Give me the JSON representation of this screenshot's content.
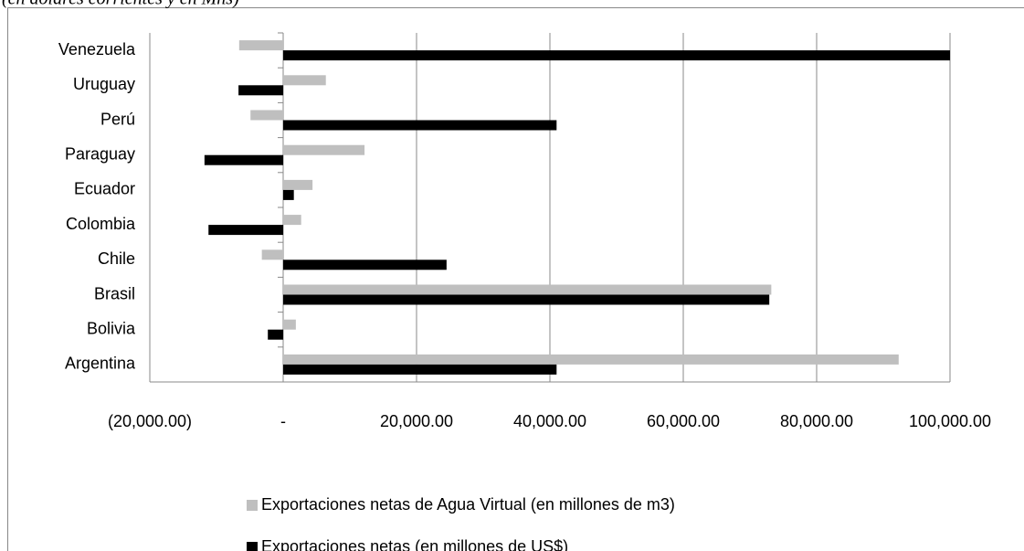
{
  "chart_data": {
    "type": "hbar",
    "subtitle": "(en dólares corrientes y en Mns)",
    "categories": [
      "Argentina",
      "Bolivia",
      "Brasil",
      "Chile",
      "Colombia",
      "Ecuador",
      "Paraguay",
      "Perú",
      "Uruguay",
      "Venezuela"
    ],
    "series": [
      {
        "name": "Exportaciones netas de Agua Virtual (en millones de m3)",
        "color": "#bfbfbf",
        "values": [
          92300,
          1900,
          73200,
          -3200,
          2700,
          4400,
          12200,
          -4900,
          6400,
          -6600
        ]
      },
      {
        "name": "Exportaciones netas (en millones de US$)",
        "color": "#000000",
        "values": [
          41000,
          -2300,
          72900,
          24500,
          -11200,
          1600,
          -11800,
          41000,
          -6700,
          100000
        ]
      }
    ],
    "xlim": [
      -20000,
      100000
    ],
    "xticks": [
      {
        "value": -20000,
        "label": "(20,000.00)"
      },
      {
        "value": 0,
        "label": "-"
      },
      {
        "value": 20000,
        "label": "20,000.00"
      },
      {
        "value": 40000,
        "label": "40,000.00"
      },
      {
        "value": 60000,
        "label": "60,000.00"
      },
      {
        "value": 80000,
        "label": "80,000.00"
      },
      {
        "value": 100000,
        "label": "100,000.00"
      }
    ],
    "grid": true,
    "legend": "bottom"
  }
}
